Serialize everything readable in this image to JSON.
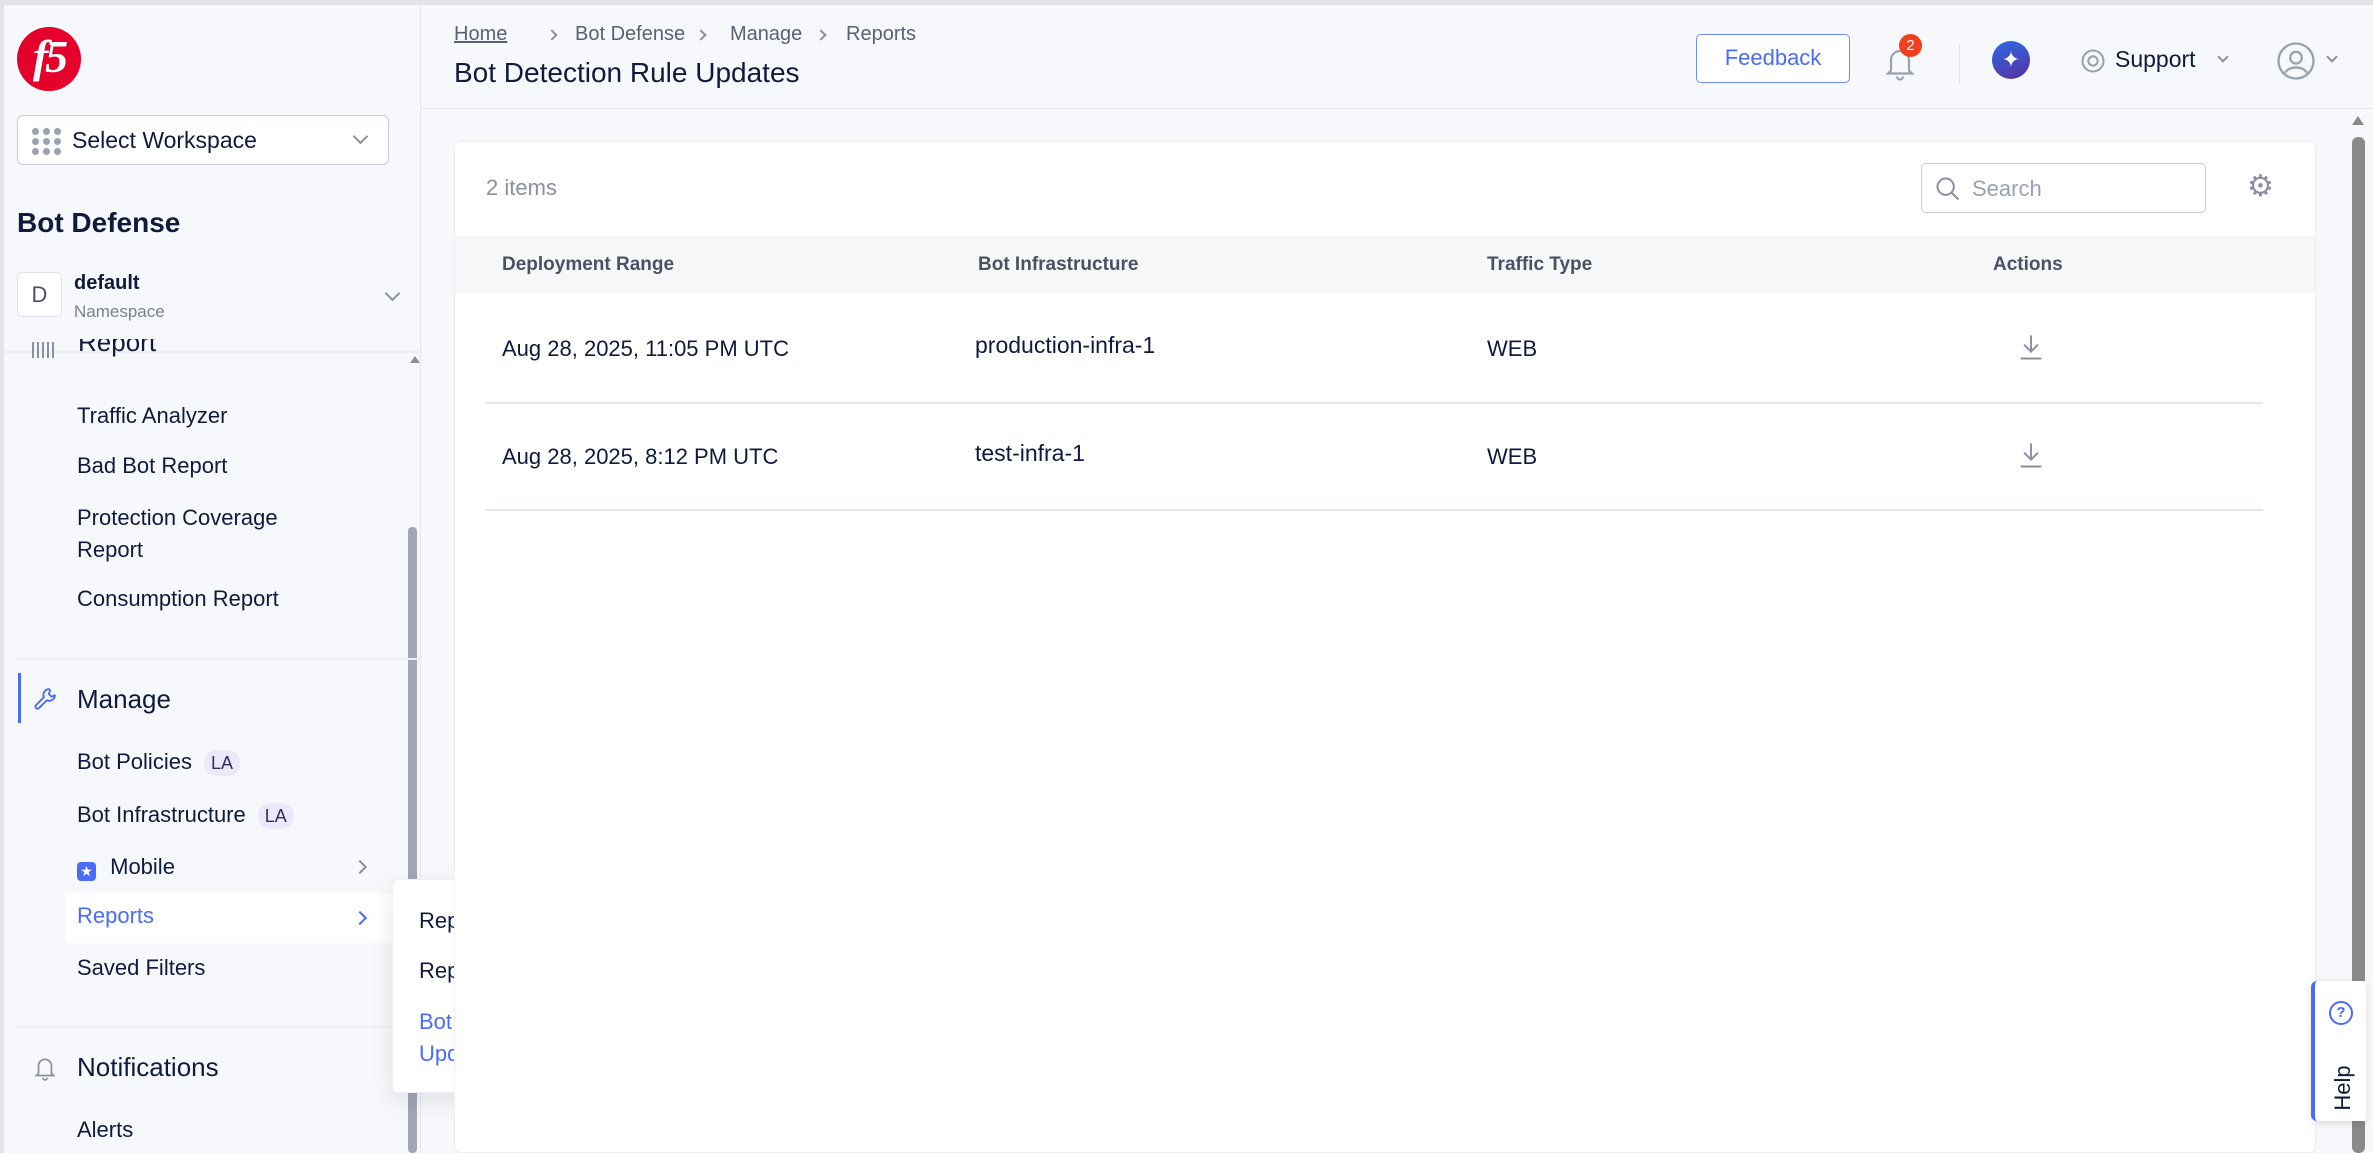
{
  "sidebar": {
    "logo_text": "f5",
    "workspace_select": "Select Workspace",
    "product_title": "Bot Defense",
    "namespace": {
      "initial": "D",
      "name": "default",
      "label": "Namespace"
    },
    "report_section_partial": "Report",
    "report_items": [
      "Traffic Analyzer",
      "Bad Bot Report",
      "Protection Coverage Report",
      "Consumption Report"
    ],
    "manage_section": "Manage",
    "manage_items": {
      "bot_policies": "Bot Policies",
      "bot_policies_badge": "LA",
      "bot_infrastructure": "Bot Infrastructure",
      "bot_infrastructure_badge": "LA",
      "mobile": "Mobile",
      "reports": "Reports",
      "saved_filters": "Saved Filters"
    },
    "notifications_section": "Notifications",
    "notifications_items": [
      "Alerts"
    ]
  },
  "flyout": {
    "items": [
      "Reports Management",
      "Reports History",
      "Bot Detection Rule Updates"
    ],
    "active_index": 2
  },
  "header": {
    "breadcrumb": [
      "Home",
      "Bot Defense",
      "Manage",
      "Reports"
    ],
    "title": "Bot Detection Rule Updates",
    "feedback": "Feedback",
    "notification_count": "2",
    "support": "Support"
  },
  "main": {
    "item_count": "2 items",
    "search_placeholder": "Search",
    "columns": [
      "Deployment Range",
      "Bot Infrastructure",
      "Traffic Type",
      "Actions"
    ],
    "rows": [
      {
        "deployment_range": "Aug 28, 2025, 11:05 PM UTC",
        "bot_infrastructure": "production-infra-1",
        "traffic_type": "WEB"
      },
      {
        "deployment_range": "Aug 28, 2025, 8:12 PM UTC",
        "bot_infrastructure": "test-infra-1",
        "traffic_type": "WEB"
      }
    ]
  },
  "help_tab": "Help",
  "colors": {
    "accent": "#4a6cf7",
    "brand_red": "#e4002b",
    "badge_red": "#f0401f",
    "text": "#0f1a3d"
  }
}
